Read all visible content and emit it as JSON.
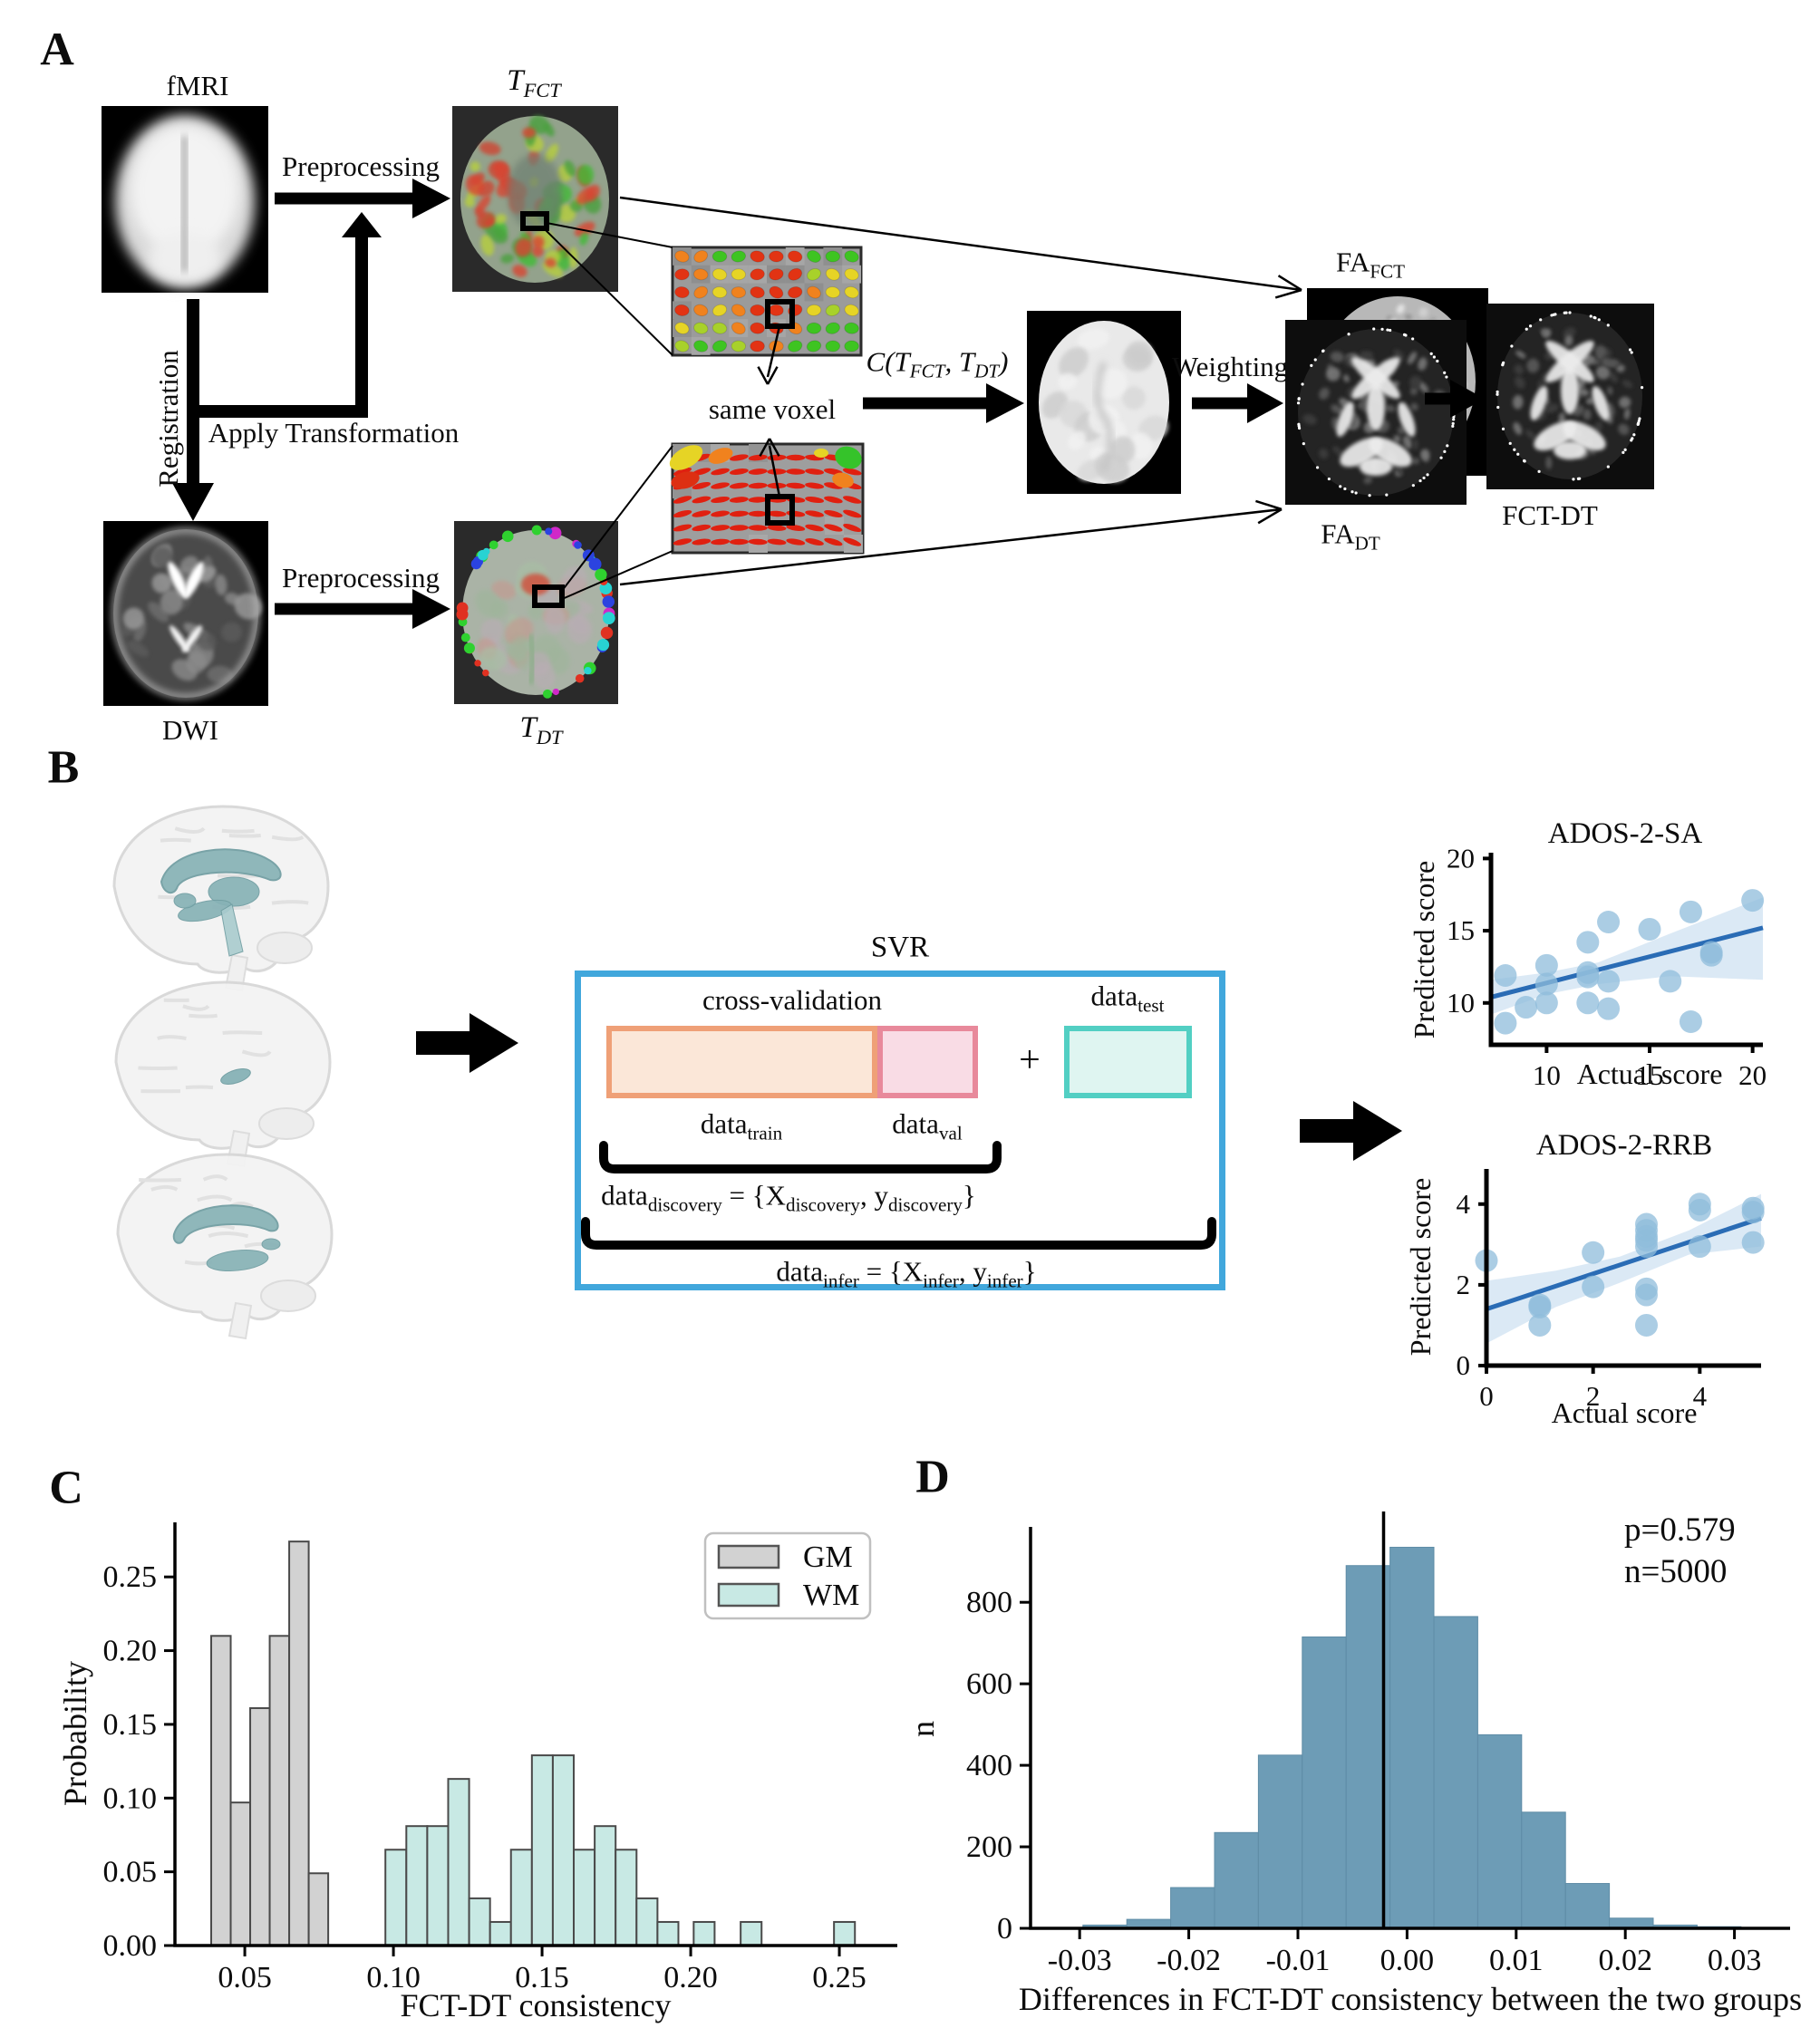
{
  "panel_a": {
    "label": "A",
    "fmri_label": "fMRI",
    "preprocessing_top": "Preprocessing",
    "t_fct_label": "T_[FCT]",
    "registration_label": "Registration",
    "apply_transformation_label": "Apply Transformation",
    "dwi_label": "DWI",
    "preprocessing_bottom": "Preprocessing",
    "t_dt_label": "T_[DT]",
    "same_voxel_label": "same voxel",
    "consistency_label": "C(T_[FCT], T_[DT])",
    "weighting_label": "Weighting",
    "fa_fct_label": "FA_[FCT]",
    "fa_dt_label": "FA_[DT]",
    "fct_dt_label": "FCT-DT",
    "glyph_rows_top_inset": [
      "ooggrrrggg",
      "royyrrrlyy",
      "royorrroyy",
      "royorrryly",
      "yllorroggg",
      "lgglrogggg"
    ],
    "glyph_palette": {
      "r": "#e23313",
      "o": "#f0821e",
      "y": "#e6d425",
      "g": "#3ec421",
      "l": "#a8d12a"
    }
  },
  "panel_b": {
    "label": "B",
    "svr": {
      "title": "SVR",
      "cross_validation": "cross-validation",
      "plus": "+",
      "data_test": "data_[test]",
      "data_train": "data_[train]",
      "data_val": "data_[val]",
      "eq_discovery": "data_[discovery] = {X_[discovery], y_[discovery]}",
      "eq_infer": "data_[infer] = {X_[infer], y_[infer]}",
      "colors": {
        "frame_border": "#41a7dc",
        "train_fill": "#fbe7d8",
        "train_border": "#efa077",
        "val_fill": "#f9dce5",
        "val_border": "#e8899b",
        "test_fill": "#dff5f1",
        "test_border": "#52cfc3"
      }
    }
  },
  "panel_c": {
    "label": "C"
  },
  "panel_d": {
    "label": "D"
  },
  "chart_data": [
    {
      "id": "ados_sa",
      "type": "scatter",
      "title": "ADOS-2-SA",
      "xlabel": "Actual score",
      "ylabel": "Predicted score",
      "xlim": [
        7.3,
        20.5
      ],
      "ylim": [
        7.1,
        20.4
      ],
      "xticks": [
        10,
        15,
        20
      ],
      "xtick_labels": [
        "10",
        "15",
        "20"
      ],
      "yticks": [
        10,
        15,
        20
      ],
      "ytick_labels": [
        "10",
        "15",
        "20"
      ],
      "points": [
        [
          8,
          11.9
        ],
        [
          8,
          8.6
        ],
        [
          9,
          9.7
        ],
        [
          10,
          12.6
        ],
        [
          10,
          11.3
        ],
        [
          10,
          10.0
        ],
        [
          12,
          14.2
        ],
        [
          12,
          12.1
        ],
        [
          12,
          11.8
        ],
        [
          12,
          10.0
        ],
        [
          13,
          15.6
        ],
        [
          13,
          11.5
        ],
        [
          13,
          9.6
        ],
        [
          15,
          15.1
        ],
        [
          16,
          11.5
        ],
        [
          17,
          16.3
        ],
        [
          17,
          8.7
        ],
        [
          18,
          13.5
        ],
        [
          18,
          13.3
        ],
        [
          20,
          17.1
        ]
      ],
      "regression_line": [
        [
          7.3,
          10.4
        ],
        [
          20.5,
          15.2
        ]
      ],
      "ci_band_upper": [
        [
          7.3,
          11.6
        ],
        [
          10,
          12.1
        ],
        [
          12.5,
          12.8
        ],
        [
          16,
          14.8
        ],
        [
          20.5,
          17.3
        ]
      ],
      "ci_band_lower": [
        [
          7.3,
          9.2
        ],
        [
          10,
          10.6
        ],
        [
          12.5,
          11.3
        ],
        [
          16,
          11.85
        ],
        [
          20.5,
          11.6
        ]
      ],
      "colors": {
        "point": "#8fbcdb",
        "line": "#2a6cb5",
        "band": "#bdd7ec"
      }
    },
    {
      "id": "ados_rrb",
      "type": "scatter",
      "title": "ADOS-2-RRB",
      "xlabel": "Actual score",
      "ylabel": "Predicted score",
      "xlim": [
        0,
        5.15
      ],
      "ylim": [
        0,
        4.87
      ],
      "xticks": [
        0,
        2,
        4
      ],
      "xtick_labels": [
        "0",
        "2",
        "4"
      ],
      "yticks": [
        0,
        2,
        4
      ],
      "ytick_labels": [
        "0",
        "2",
        "4"
      ],
      "points": [
        [
          0,
          2.6
        ],
        [
          1,
          1.5
        ],
        [
          1,
          1.45
        ],
        [
          1,
          1.0
        ],
        [
          2,
          2.8
        ],
        [
          2,
          1.95
        ],
        [
          3,
          3.5
        ],
        [
          3,
          3.35
        ],
        [
          3,
          3.2
        ],
        [
          3,
          3.1
        ],
        [
          3,
          2.95
        ],
        [
          3,
          1.9
        ],
        [
          3,
          1.75
        ],
        [
          3,
          1.0
        ],
        [
          4,
          4.0
        ],
        [
          4,
          3.85
        ],
        [
          4,
          2.95
        ],
        [
          5,
          3.9
        ],
        [
          5,
          3.8
        ],
        [
          5,
          3.05
        ]
      ],
      "regression_line": [
        [
          0,
          1.4
        ],
        [
          5.15,
          3.65
        ]
      ],
      "ci_band_upper": [
        [
          0,
          2.1
        ],
        [
          1.3,
          2.35
        ],
        [
          2.5,
          2.7
        ],
        [
          3.8,
          3.35
        ],
        [
          5.15,
          4.25
        ]
      ],
      "ci_band_lower": [
        [
          0,
          0.55
        ],
        [
          1.3,
          1.45
        ],
        [
          2.5,
          2.05
        ],
        [
          3.8,
          2.75
        ],
        [
          5.15,
          2.95
        ]
      ],
      "colors": {
        "point": "#8fbcdb",
        "line": "#2a6cb5",
        "band": "#bdd7ec"
      }
    },
    {
      "id": "consistency_hist",
      "type": "histogram",
      "xlabel": "FCT-DT consistency",
      "ylabel": "Probability",
      "xlim": [
        0.0265,
        0.2695
      ],
      "ylim": [
        0,
        0.287
      ],
      "xticks": [
        0.05,
        0.1,
        0.15,
        0.2,
        0.25
      ],
      "xtick_labels": [
        "0.05",
        "0.10",
        "0.15",
        "0.20",
        "0.25"
      ],
      "yticks": [
        0.0,
        0.05,
        0.1,
        0.15,
        0.2,
        0.25
      ],
      "ytick_labels": [
        "0.00",
        "0.05",
        "0.10",
        "0.15",
        "0.20",
        "0.25"
      ],
      "legend": [
        "GM",
        "WM"
      ],
      "series": [
        {
          "name": "GM",
          "bin_start": 0.0387,
          "bin_width": 0.00656,
          "heights": [
            0.21,
            0.097,
            0.161,
            0.21,
            0.274,
            0.049
          ]
        },
        {
          "name": "WM",
          "bin_start": 0.0973,
          "bin_width": 0.00704,
          "heights": [
            0.065,
            0.081,
            0.081,
            0.113,
            0.032,
            0.016,
            0.065,
            0.129,
            0.129,
            0.065,
            0.081,
            0.065,
            0.032,
            0.016
          ]
        }
      ],
      "wm_isolated_bars": [
        {
          "x": 0.201,
          "h": 0.016
        },
        {
          "x": 0.2168,
          "h": 0.016
        },
        {
          "x": 0.2482,
          "h": 0.016
        }
      ],
      "colors": {
        "GM_fill": "#d2d2d2",
        "WM_fill": "#c8e9e4",
        "edge": "#4a4a4a"
      }
    },
    {
      "id": "permutation_hist",
      "type": "histogram",
      "xlabel": "Differences in FCT-DT consistency between the two groups",
      "ylabel": "n",
      "xlim": [
        -0.0345,
        0.0351
      ],
      "ylim": [
        0,
        985
      ],
      "xticks": [
        -0.03,
        -0.02,
        -0.01,
        0.0,
        0.01,
        0.02,
        0.03
      ],
      "xtick_labels": [
        "-0.03",
        "-0.02",
        "-0.01",
        "0.00",
        "0.01",
        "0.02",
        "0.03"
      ],
      "yticks": [
        0,
        200,
        400,
        600,
        800
      ],
      "ytick_labels": [
        "0",
        "200",
        "400",
        "600",
        "800"
      ],
      "bin_start": -0.0297,
      "bin_width": 0.00402,
      "heights": [
        8,
        22,
        100,
        235,
        425,
        715,
        890,
        935,
        765,
        475,
        285,
        110,
        25,
        8,
        4
      ],
      "vline_x": -0.00215,
      "annotations": [
        "p=0.579",
        "n=5000"
      ],
      "colors": {
        "fill": "#6d9cb6",
        "edge": "#5e8ca6",
        "vline": "#000000"
      }
    }
  ]
}
